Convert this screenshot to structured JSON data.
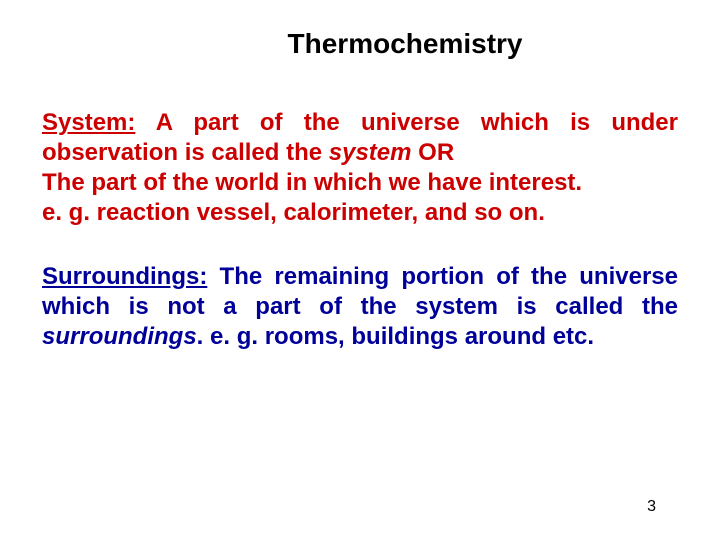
{
  "title": {
    "text": "Thermochemistry",
    "color": "#000000",
    "fontsize": 28
  },
  "system": {
    "term": "System:",
    "body1": " A part of the universe which is under observation is called the ",
    "italic1": "system",
    "body2": " OR",
    "line2": "The part of the world in which we have interest.",
    "line3": "e. g. reaction vessel, calorimeter, and so on.",
    "color": "#cc0000",
    "fontsize": 24
  },
  "surroundings": {
    "term": "Surroundings:",
    "body1": " The remaining portion of the universe which is not a part of the system is called the ",
    "italic1": "surroundings",
    "body2": ". e. g. rooms, buildings around etc.",
    "color": "#000099",
    "fontsize": 24
  },
  "pagenum": {
    "text": "3",
    "color": "#000000",
    "fontsize": 16
  },
  "background_color": "#ffffff"
}
